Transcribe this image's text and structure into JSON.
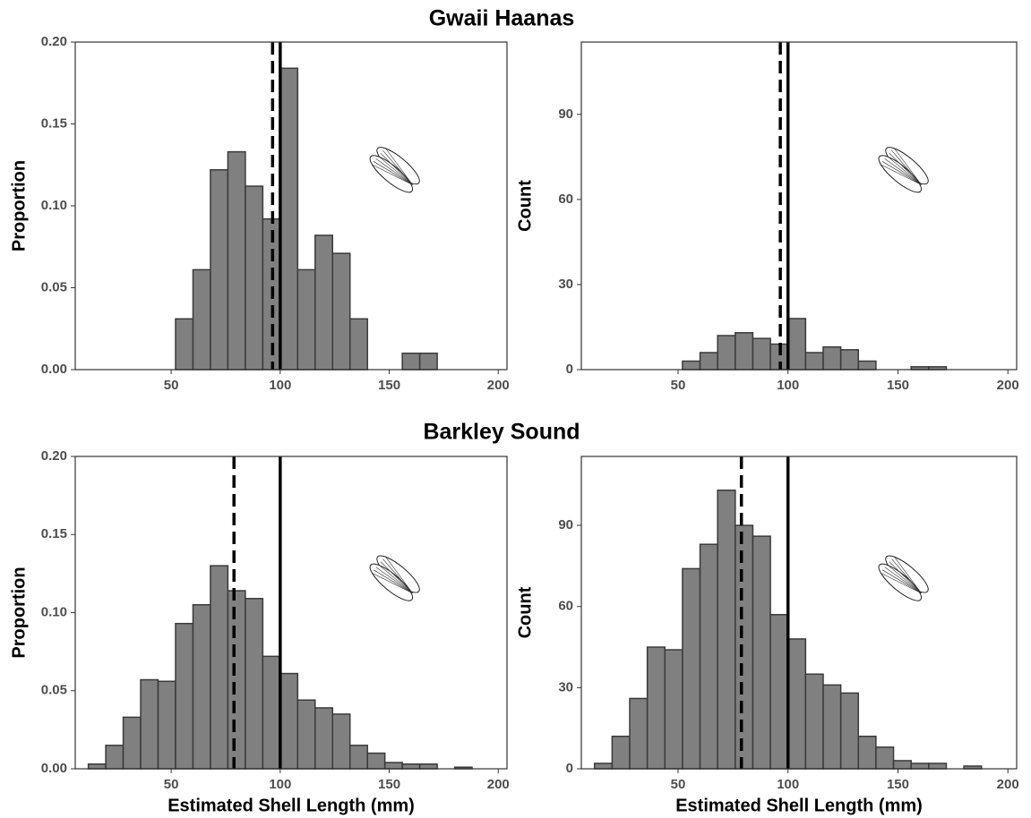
{
  "row_titles": [
    "Gwaii Haanas",
    "Barkley Sound"
  ],
  "chart_data": [
    {
      "type": "histogram",
      "ylabel": "Proportion",
      "color": "#808080",
      "edgecolor": "#3a3a3a",
      "bins": [
        12,
        20,
        28,
        36,
        44,
        52,
        60,
        68,
        76,
        84,
        92,
        100,
        108,
        116,
        124,
        132,
        140,
        148,
        156,
        164,
        172,
        180,
        188,
        196
      ],
      "values": [
        0,
        0,
        0,
        0,
        0,
        0.031,
        0.061,
        0.122,
        0.133,
        0.112,
        0.092,
        0.184,
        0.061,
        0.082,
        0.071,
        0.031,
        0,
        0,
        0.01,
        0.01,
        0,
        0,
        0
      ],
      "xlim": [
        6,
        204
      ],
      "xticks": [
        50,
        100,
        150,
        200
      ],
      "ylim": [
        0,
        0.2
      ],
      "yticks": [
        {
          "value": 0,
          "label": "0.00"
        },
        {
          "value": 0.05,
          "label": "0.05"
        },
        {
          "value": 0.1,
          "label": "0.10"
        },
        {
          "value": 0.15,
          "label": "0.15"
        },
        {
          "value": 0.2,
          "label": "0.20"
        }
      ],
      "vlines": [
        {
          "value": 96.5,
          "style": "dashed"
        },
        {
          "value": 100,
          "style": "solid"
        }
      ],
      "grid": false
    },
    {
      "type": "histogram",
      "ylabel": "Count",
      "color": "#808080",
      "edgecolor": "#3a3a3a",
      "bins": [
        12,
        20,
        28,
        36,
        44,
        52,
        60,
        68,
        76,
        84,
        92,
        100,
        108,
        116,
        124,
        132,
        140,
        148,
        156,
        164,
        172,
        180,
        188,
        196
      ],
      "values": [
        0,
        0,
        0,
        0,
        0,
        3,
        6,
        12,
        13,
        11,
        9,
        18,
        6,
        8,
        7,
        3,
        0,
        0,
        1,
        1,
        0,
        0,
        0
      ],
      "xlim": [
        6,
        204
      ],
      "xticks": [
        50,
        100,
        150,
        200
      ],
      "ylim": [
        0,
        115.5
      ],
      "yticks": [
        0,
        30,
        60,
        90
      ],
      "vlines": [
        {
          "value": 96.5,
          "style": "dashed"
        },
        {
          "value": 100,
          "style": "solid"
        }
      ],
      "grid": false
    },
    {
      "type": "histogram",
      "ylabel": "Proportion",
      "xlabel": "Estimated Shell Length (mm)",
      "color": "#808080",
      "edgecolor": "#3a3a3a",
      "bins": [
        12,
        20,
        28,
        36,
        44,
        52,
        60,
        68,
        76,
        84,
        92,
        100,
        108,
        116,
        124,
        132,
        140,
        148,
        156,
        164,
        172,
        180,
        188,
        196
      ],
      "values": [
        0.003,
        0.015,
        0.033,
        0.057,
        0.056,
        0.093,
        0.105,
        0.13,
        0.114,
        0.109,
        0.072,
        0.061,
        0.044,
        0.039,
        0.035,
        0.015,
        0.01,
        0.004,
        0.003,
        0.003,
        0,
        0.001,
        0
      ],
      "xlim": [
        6,
        204
      ],
      "xticks": [
        50,
        100,
        150,
        200
      ],
      "ylim": [
        0,
        0.2
      ],
      "yticks": [
        {
          "value": 0,
          "label": "0.00"
        },
        {
          "value": 0.05,
          "label": "0.05"
        },
        {
          "value": 0.1,
          "label": "0.10"
        },
        {
          "value": 0.15,
          "label": "0.15"
        },
        {
          "value": 0.2,
          "label": "0.20"
        }
      ],
      "vlines": [
        {
          "value": 78.8,
          "style": "dashed"
        },
        {
          "value": 100,
          "style": "solid"
        }
      ],
      "grid": false
    },
    {
      "type": "histogram",
      "ylabel": "Count",
      "xlabel": "Estimated Shell Length (mm)",
      "color": "#808080",
      "edgecolor": "#3a3a3a",
      "bins": [
        12,
        20,
        28,
        36,
        44,
        52,
        60,
        68,
        76,
        84,
        92,
        100,
        108,
        116,
        124,
        132,
        140,
        148,
        156,
        164,
        172,
        180,
        188,
        196
      ],
      "values": [
        2,
        12,
        26,
        45,
        44,
        74,
        83,
        103,
        90,
        86,
        57,
        48,
        35,
        31,
        28,
        12,
        8,
        3,
        2,
        2,
        0,
        1,
        0
      ],
      "xlim": [
        6,
        204
      ],
      "xticks": [
        50,
        100,
        150,
        200
      ],
      "ylim": [
        0,
        115.5
      ],
      "yticks": [
        0,
        30,
        60,
        90
      ],
      "vlines": [
        {
          "value": 78.8,
          "style": "dashed"
        },
        {
          "value": 100,
          "style": "solid"
        }
      ],
      "grid": false
    }
  ]
}
